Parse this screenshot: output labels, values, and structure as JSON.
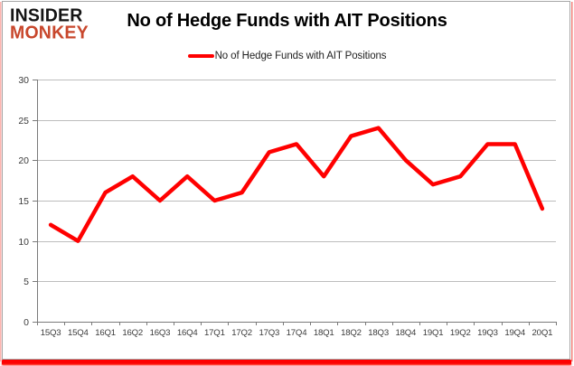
{
  "logo": {
    "line1": "INSIDER",
    "line2": "MONKEY"
  },
  "chart_data": {
    "type": "line",
    "title": "No of Hedge Funds with AIT Positions",
    "xlabel": "",
    "ylabel": "",
    "categories": [
      "15Q3",
      "15Q4",
      "16Q1",
      "16Q2",
      "16Q3",
      "16Q4",
      "17Q1",
      "17Q2",
      "17Q3",
      "17Q4",
      "18Q1",
      "18Q2",
      "18Q3",
      "18Q4",
      "19Q1",
      "19Q2",
      "19Q3",
      "19Q4",
      "20Q1"
    ],
    "series": [
      {
        "name": "No of Hedge Funds with AIT Positions",
        "values": [
          12,
          10,
          16,
          18,
          15,
          18,
          15,
          16,
          21,
          22,
          18,
          23,
          24,
          20,
          17,
          18,
          22,
          22,
          14
        ],
        "color": "#ff0000"
      }
    ],
    "ylim": [
      0,
      30
    ],
    "yticks": [
      0,
      5,
      10,
      15,
      20,
      25,
      30
    ],
    "grid": "horizontal",
    "legend_position": "top-center"
  },
  "colors": {
    "series_red": "#ff0000",
    "logo_monkey_red": "#c8472c",
    "gridline_gray": "#bdbdbd",
    "axis_gray": "#7a7a7a",
    "tick_text": "#3b3b3b",
    "frame_border": "#a6a6a6",
    "frame_glow_red": "#ff0000"
  }
}
